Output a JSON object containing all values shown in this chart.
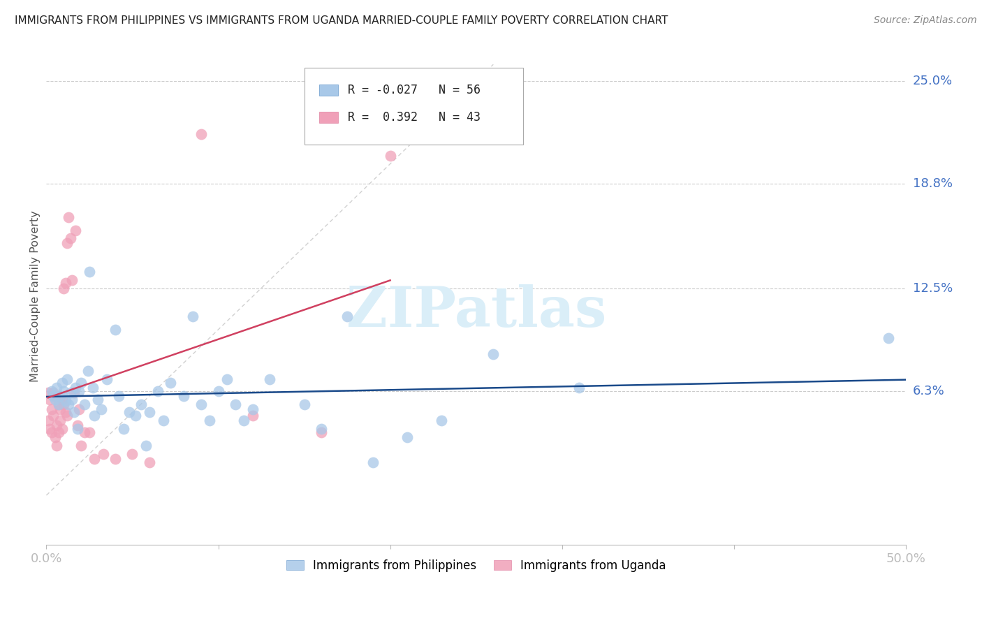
{
  "title": "IMMIGRANTS FROM PHILIPPINES VS IMMIGRANTS FROM UGANDA MARRIED-COUPLE FAMILY POVERTY CORRELATION CHART",
  "source": "Source: ZipAtlas.com",
  "tick_color": "#4472c4",
  "ylabel": "Married-Couple Family Poverty",
  "xlim": [
    0.0,
    0.5
  ],
  "ylim": [
    -0.03,
    0.27
  ],
  "ytick_labels_right": [
    "25.0%",
    "18.8%",
    "12.5%",
    "6.3%"
  ],
  "ytick_vals_right": [
    0.25,
    0.188,
    0.125,
    0.063
  ],
  "color_philippines": "#a8c8e8",
  "color_uganda": "#f0a0b8",
  "color_philippines_line": "#1a4a8a",
  "color_uganda_line": "#d04060",
  "watermark_color": "#daeef8",
  "philippines_x": [
    0.003,
    0.004,
    0.005,
    0.006,
    0.007,
    0.008,
    0.009,
    0.01,
    0.011,
    0.012,
    0.013,
    0.014,
    0.015,
    0.016,
    0.017,
    0.018,
    0.019,
    0.02,
    0.022,
    0.024,
    0.025,
    0.027,
    0.028,
    0.03,
    0.032,
    0.035,
    0.04,
    0.042,
    0.045,
    0.048,
    0.052,
    0.055,
    0.058,
    0.06,
    0.065,
    0.068,
    0.072,
    0.08,
    0.085,
    0.09,
    0.095,
    0.1,
    0.105,
    0.11,
    0.115,
    0.12,
    0.13,
    0.15,
    0.16,
    0.175,
    0.19,
    0.21,
    0.23,
    0.26,
    0.31,
    0.49
  ],
  "philippines_y": [
    0.063,
    0.06,
    0.058,
    0.065,
    0.055,
    0.06,
    0.068,
    0.063,
    0.057,
    0.07,
    0.055,
    0.062,
    0.058,
    0.05,
    0.065,
    0.04,
    0.063,
    0.068,
    0.055,
    0.075,
    0.135,
    0.065,
    0.048,
    0.058,
    0.052,
    0.07,
    0.1,
    0.06,
    0.04,
    0.05,
    0.048,
    0.055,
    0.03,
    0.05,
    0.063,
    0.045,
    0.068,
    0.06,
    0.108,
    0.055,
    0.045,
    0.063,
    0.07,
    0.055,
    0.045,
    0.052,
    0.07,
    0.055,
    0.04,
    0.108,
    0.02,
    0.035,
    0.045,
    0.085,
    0.065,
    0.095
  ],
  "uganda_x": [
    0.001,
    0.001,
    0.002,
    0.002,
    0.003,
    0.003,
    0.004,
    0.004,
    0.005,
    0.005,
    0.006,
    0.006,
    0.007,
    0.007,
    0.008,
    0.008,
    0.009,
    0.009,
    0.01,
    0.01,
    0.011,
    0.011,
    0.012,
    0.012,
    0.013,
    0.014,
    0.015,
    0.016,
    0.017,
    0.018,
    0.019,
    0.02,
    0.022,
    0.025,
    0.028,
    0.033,
    0.04,
    0.05,
    0.06,
    0.09,
    0.12,
    0.16,
    0.2
  ],
  "uganda_y": [
    0.062,
    0.045,
    0.058,
    0.04,
    0.052,
    0.038,
    0.062,
    0.048,
    0.06,
    0.035,
    0.03,
    0.042,
    0.055,
    0.038,
    0.052,
    0.045,
    0.04,
    0.058,
    0.125,
    0.055,
    0.128,
    0.05,
    0.152,
    0.048,
    0.168,
    0.155,
    0.13,
    0.062,
    0.16,
    0.042,
    0.052,
    0.03,
    0.038,
    0.038,
    0.022,
    0.025,
    0.022,
    0.025,
    0.02,
    0.218,
    0.048,
    0.038,
    0.205
  ]
}
